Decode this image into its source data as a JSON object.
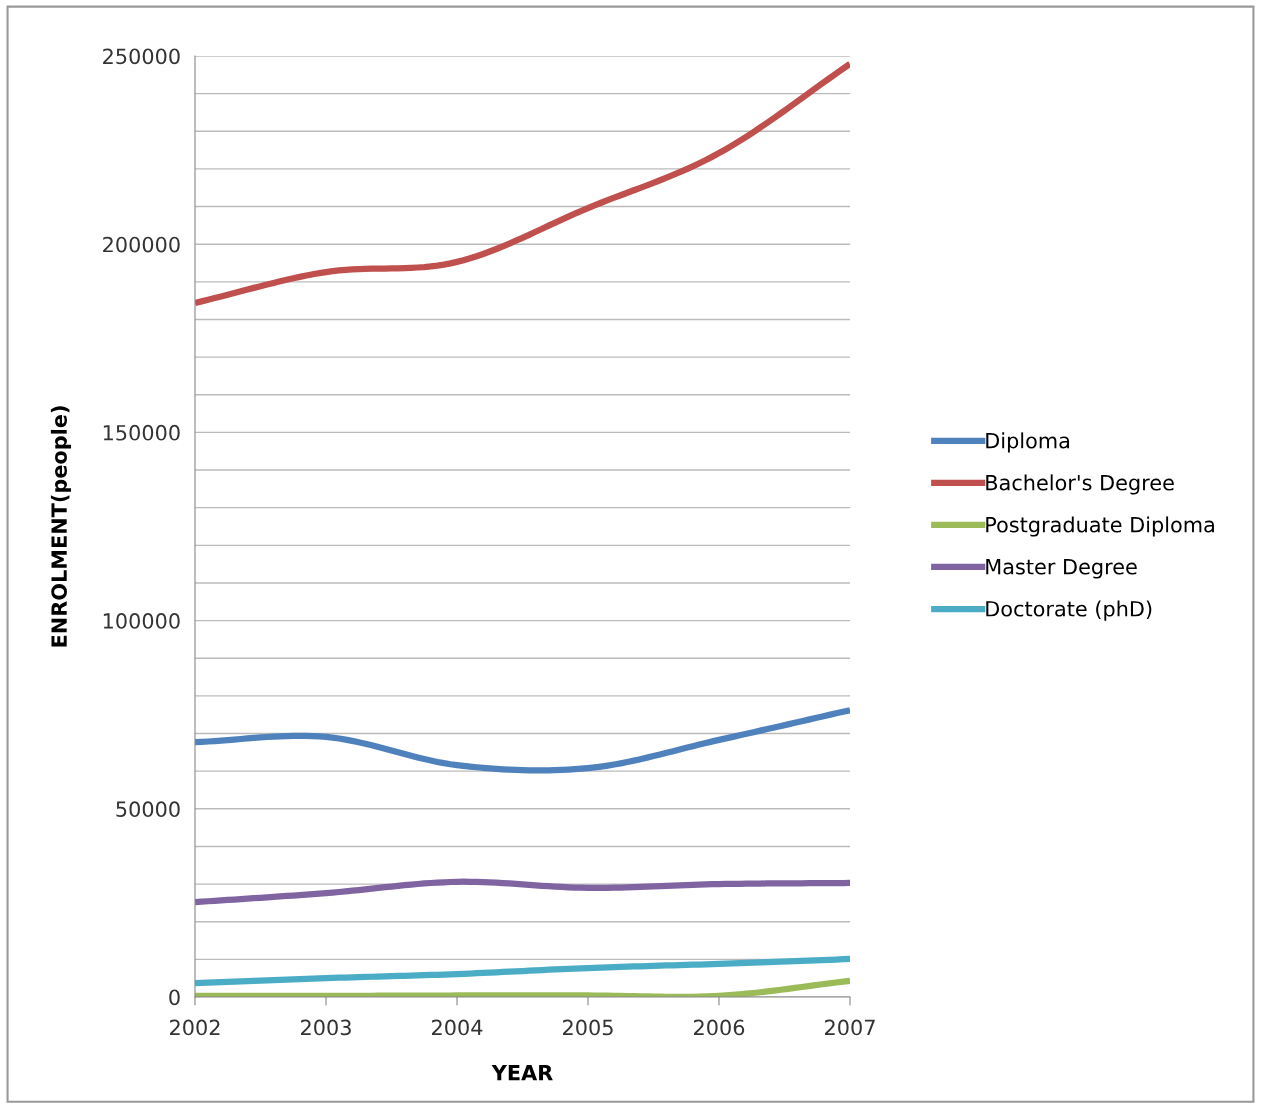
{
  "chart_data": {
    "type": "line",
    "xlabel": "YEAR",
    "ylabel": "ENROLMENT(people)",
    "x": [
      2002,
      2003,
      2004,
      2005,
      2006,
      2007
    ],
    "series": [
      {
        "name": "Diploma",
        "color": "#4f81bd",
        "values": [
          67700,
          69100,
          61600,
          60800,
          68300,
          76200
        ]
      },
      {
        "name": "Bachelor's Degree",
        "color": "#c0504d",
        "values": [
          184400,
          192600,
          195300,
          209600,
          224200,
          247900
        ]
      },
      {
        "name": "Postgraduate Diploma",
        "color": "#9bbb59",
        "values": [
          300,
          300,
          400,
          400,
          300,
          4300
        ]
      },
      {
        "name": "Master Degree",
        "color": "#8064a2",
        "values": [
          25200,
          27600,
          30600,
          29000,
          30000,
          30300
        ]
      },
      {
        "name": "Doctorate (phD)",
        "color": "#4bacc6",
        "values": [
          3700,
          5000,
          6100,
          7700,
          8800,
          10100
        ]
      }
    ],
    "xlim": [
      2002,
      2007
    ],
    "xticks": [
      2002,
      2003,
      2004,
      2005,
      2006,
      2007
    ],
    "ylim": [
      0,
      250000
    ],
    "yticks": [
      0,
      {
        "value": 10000,
        "label": null
      },
      {
        "value": 20000,
        "label": null
      },
      {
        "value": 30000,
        "label": null
      },
      {
        "value": 40000,
        "label": null
      },
      50000,
      {
        "value": 60000,
        "label": null
      },
      {
        "value": 70000,
        "label": null
      },
      {
        "value": 80000,
        "label": null
      },
      {
        "value": 90000,
        "label": null
      },
      100000,
      {
        "value": 110000,
        "label": null
      },
      {
        "value": 120000,
        "label": null
      },
      {
        "value": 130000,
        "label": null
      },
      {
        "value": 140000,
        "label": null
      },
      150000,
      {
        "value": 160000,
        "label": null
      },
      {
        "value": 170000,
        "label": null
      },
      {
        "value": 180000,
        "label": null
      },
      {
        "value": 190000,
        "label": null
      },
      200000,
      {
        "value": 210000,
        "label": null
      },
      {
        "value": 220000,
        "label": null
      },
      {
        "value": 230000,
        "label": null
      },
      {
        "value": 240000,
        "label": null
      },
      250000
    ],
    "grid": "y",
    "legend": "right",
    "marker": "none",
    "line_style": "solid"
  }
}
